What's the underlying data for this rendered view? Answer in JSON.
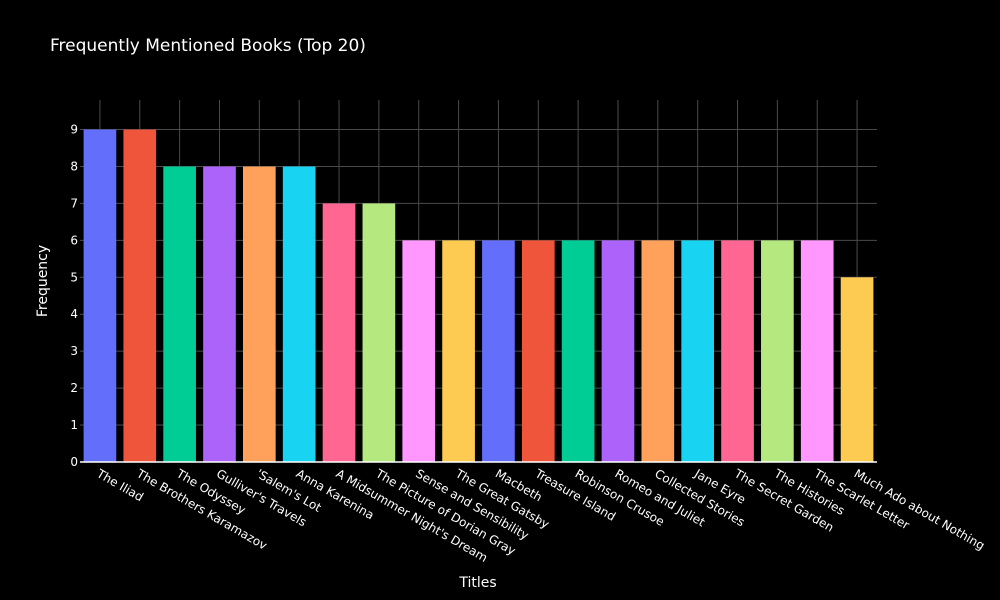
{
  "chart_data": {
    "type": "bar",
    "title": "Frequently Mentioned Books (Top 20)",
    "xlabel": "Titles",
    "ylabel": "Frequency",
    "ylim": [
      0,
      9.8
    ],
    "yticks": [
      0,
      1,
      2,
      3,
      4,
      5,
      6,
      7,
      8,
      9
    ],
    "grid": true,
    "categories": [
      "The Iliad",
      "The Brothers Karamazov",
      "The Odyssey",
      "Gulliver's Travels",
      "'Salem's Lot",
      "Anna Karenina",
      "A Midsummer Night's Dream",
      "The Picture of Dorian Gray",
      "Sense and Sensibility",
      "The Great Gatsby",
      "Macbeth",
      "Treasure Island",
      "Robinson Crusoe",
      "Romeo and Juliet",
      "Collected Stories",
      "Jane Eyre",
      "The Secret Garden",
      "The Histories",
      "The Scarlet Letter",
      "Much Ado about Nothing"
    ],
    "values": [
      9,
      9,
      8,
      8,
      8,
      8,
      7,
      7,
      6,
      6,
      6,
      6,
      6,
      6,
      6,
      6,
      6,
      6,
      6,
      5
    ],
    "colors": [
      "#636efa",
      "#ef553b",
      "#00cc96",
      "#ab63fa",
      "#ffa15a",
      "#19d3f3",
      "#ff6692",
      "#b6e880",
      "#ff97ff",
      "#fecb52"
    ]
  }
}
